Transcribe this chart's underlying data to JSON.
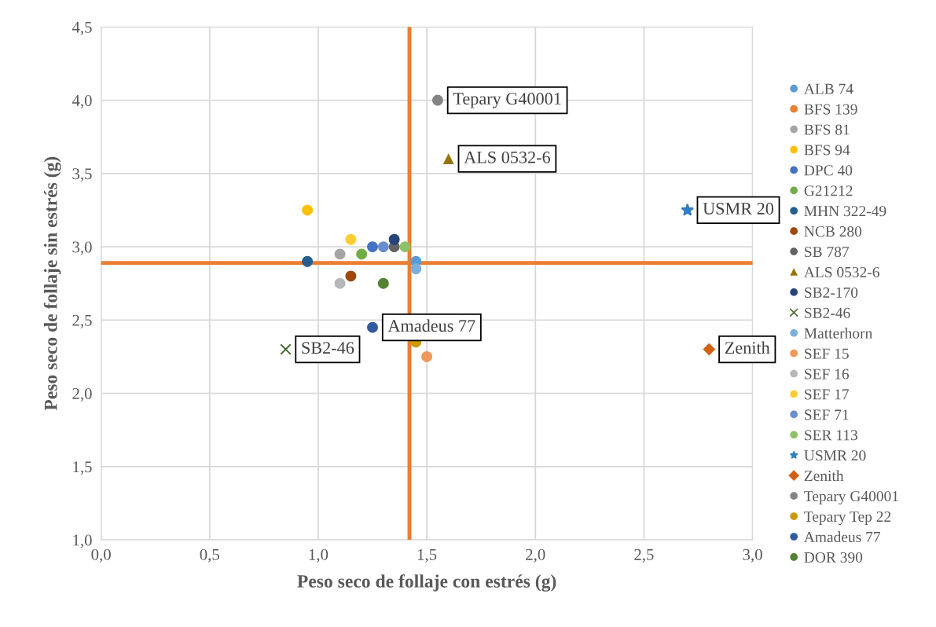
{
  "chart_data": {
    "type": "scatter",
    "xlabel": "Peso seco de follaje con estrés (g)",
    "ylabel": "Peso seco de follaje sin estrés (g)",
    "xlim": [
      0,
      3
    ],
    "ylim": [
      1,
      4.5
    ],
    "xticks": [
      {
        "value": 0,
        "label": "0,0"
      },
      {
        "value": 0.5,
        "label": "0,5"
      },
      {
        "value": 1,
        "label": "1,0"
      },
      {
        "value": 1.5,
        "label": "1,5"
      },
      {
        "value": 2,
        "label": "2,0"
      },
      {
        "value": 2.5,
        "label": "2,5"
      },
      {
        "value": 3,
        "label": "3,0"
      }
    ],
    "yticks": [
      {
        "value": 1,
        "label": "1,0"
      },
      {
        "value": 1.5,
        "label": "1,5"
      },
      {
        "value": 2,
        "label": "2,0"
      },
      {
        "value": 2.5,
        "label": "2,5"
      },
      {
        "value": 3,
        "label": "3,0"
      },
      {
        "value": 3.5,
        "label": "3,5"
      },
      {
        "value": 4,
        "label": "4,0"
      },
      {
        "value": 4.5,
        "label": "4,5"
      }
    ],
    "grid": true,
    "legend": "right",
    "marker": "circle",
    "series": [
      {
        "name": "ALB 74",
        "color": "#5b9bd5",
        "x": [
          1.45
        ],
        "values": [
          2.9
        ]
      },
      {
        "name": "BFS 139",
        "color": "#ed7d31",
        "x": [
          null
        ],
        "values": [
          null
        ]
      },
      {
        "name": "BFS 81",
        "color": "#a5a5a5",
        "x": [
          1.1
        ],
        "values": [
          2.95
        ]
      },
      {
        "name": "BFS 94",
        "color": "#ffc000",
        "x": [
          0.95
        ],
        "values": [
          3.25
        ]
      },
      {
        "name": "DPC 40",
        "color": "#4472c4",
        "x": [
          1.25
        ],
        "values": [
          3.0
        ]
      },
      {
        "name": "G21212",
        "color": "#70ad47",
        "x": [
          1.2
        ],
        "values": [
          2.95
        ]
      },
      {
        "name": "MHN 322-49",
        "color": "#255e91",
        "x": [
          0.95
        ],
        "values": [
          2.9
        ]
      },
      {
        "name": "NCB 280",
        "color": "#9e480e",
        "x": [
          1.15
        ],
        "values": [
          2.8
        ]
      },
      {
        "name": "SB 787",
        "color": "#636363",
        "x": [
          1.35
        ],
        "values": [
          3.0
        ]
      },
      {
        "name": "ALS 0532-6",
        "color": "#997300",
        "x": [
          1.6
        ],
        "values": [
          3.6
        ],
        "marker": "triangle"
      },
      {
        "name": "SB2-170",
        "color": "#264478",
        "x": [
          1.35
        ],
        "values": [
          3.05
        ]
      },
      {
        "name": "SB2-46",
        "color": "#43682b",
        "x": [
          0.85
        ],
        "values": [
          2.3
        ],
        "marker": "cross"
      },
      {
        "name": "Matterhorn",
        "color": "#7cafdd",
        "x": [
          1.45
        ],
        "values": [
          2.85
        ]
      },
      {
        "name": "SEF 15",
        "color": "#f1975a",
        "x": [
          1.5
        ],
        "values": [
          2.25
        ]
      },
      {
        "name": "SEF 16",
        "color": "#b7b7b7",
        "x": [
          1.1
        ],
        "values": [
          2.75
        ]
      },
      {
        "name": "SEF 17",
        "color": "#ffcd33",
        "x": [
          1.15
        ],
        "values": [
          3.05
        ]
      },
      {
        "name": "SEF 71",
        "color": "#698ed0",
        "x": [
          1.3
        ],
        "values": [
          3.0
        ]
      },
      {
        "name": "SER 113",
        "color": "#8cc168",
        "x": [
          1.4
        ],
        "values": [
          3.0
        ]
      },
      {
        "name": "USMR 20",
        "color": "#327dc2",
        "x": [
          2.7
        ],
        "values": [
          3.25
        ],
        "marker": "star"
      },
      {
        "name": "Zenith",
        "color": "#d26012",
        "x": [
          2.8
        ],
        "values": [
          2.3
        ],
        "marker": "diamond"
      },
      {
        "name": "Tepary G40001",
        "color": "#848484",
        "x": [
          1.55
        ],
        "values": [
          4.0
        ]
      },
      {
        "name": "Tepary Tep 22",
        "color": "#cc9a00",
        "x": [
          1.45
        ],
        "values": [
          2.35
        ]
      },
      {
        "name": "Amadeus 77",
        "color": "#335aa1",
        "x": [
          1.25
        ],
        "values": [
          2.45
        ]
      },
      {
        "name": "DOR 390",
        "color": "#548235",
        "x": [
          1.3
        ],
        "values": [
          2.75
        ]
      }
    ],
    "ref_lines": [
      {
        "axis": "x",
        "value": 1.42,
        "color": "#ed7d31"
      },
      {
        "axis": "y",
        "value": 2.89,
        "color": "#ed7d31"
      }
    ],
    "annotations": [
      {
        "text": "Tepary G40001",
        "x": 1.55,
        "y": 4.0
      },
      {
        "text": "ALS 0532-6",
        "x": 1.6,
        "y": 3.6
      },
      {
        "text": "USMR 20",
        "x": 2.7,
        "y": 3.25
      },
      {
        "text": "Amadeus 77",
        "x": 1.25,
        "y": 2.45
      },
      {
        "text": "SB2-46",
        "x": 0.85,
        "y": 2.3
      },
      {
        "text": "Zenith",
        "x": 2.8,
        "y": 2.3
      }
    ]
  }
}
